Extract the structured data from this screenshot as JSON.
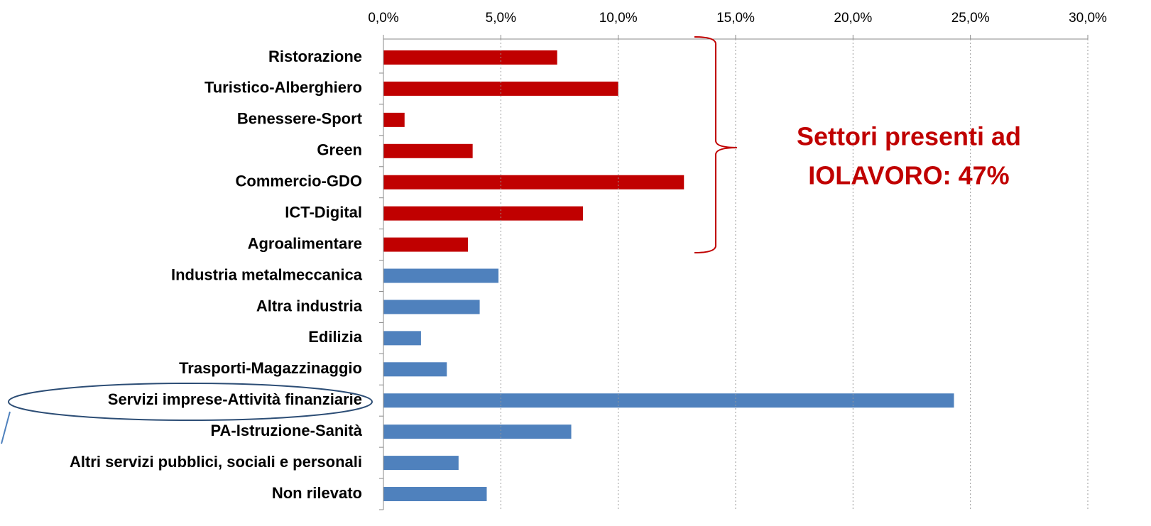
{
  "chart_data": {
    "type": "bar",
    "orientation": "horizontal",
    "categories": [
      "Ristorazione",
      "Turistico-Alberghiero",
      "Benessere-Sport",
      "Green",
      "Commercio-GDO",
      "ICT-Digital",
      "Agroalimentare",
      "Industria metalmeccanica",
      "Altra industria",
      "Edilizia",
      "Trasporti-Magazzinaggio",
      "Servizi imprese-Attività finanziarie",
      "PA-Istruzione-Sanità",
      "Altri servizi pubblici, sociali e personali",
      "Non rilevato"
    ],
    "values": [
      7.4,
      10.0,
      0.9,
      3.8,
      12.8,
      8.5,
      3.6,
      4.9,
      4.1,
      1.6,
      2.7,
      24.3,
      8.0,
      3.2,
      4.4
    ],
    "colors": [
      "#c00000",
      "#c00000",
      "#c00000",
      "#c00000",
      "#c00000",
      "#c00000",
      "#c00000",
      "#4f81bd",
      "#4f81bd",
      "#4f81bd",
      "#4f81bd",
      "#4f81bd",
      "#4f81bd",
      "#4f81bd",
      "#4f81bd"
    ],
    "xlim": [
      0,
      30
    ],
    "xticks": [
      {
        "value": 0,
        "label": "0,0%"
      },
      {
        "value": 5,
        "label": "5,0%"
      },
      {
        "value": 10,
        "label": "10,0%"
      },
      {
        "value": 15,
        "label": "15,0%"
      },
      {
        "value": 20,
        "label": "20,0%"
      },
      {
        "value": 25,
        "label": "25,0%"
      },
      {
        "value": 30,
        "label": "30,0%"
      }
    ],
    "grid": true,
    "annotation": [
      "Settori presenti ad",
      "IOLAVORO: 47%"
    ]
  }
}
